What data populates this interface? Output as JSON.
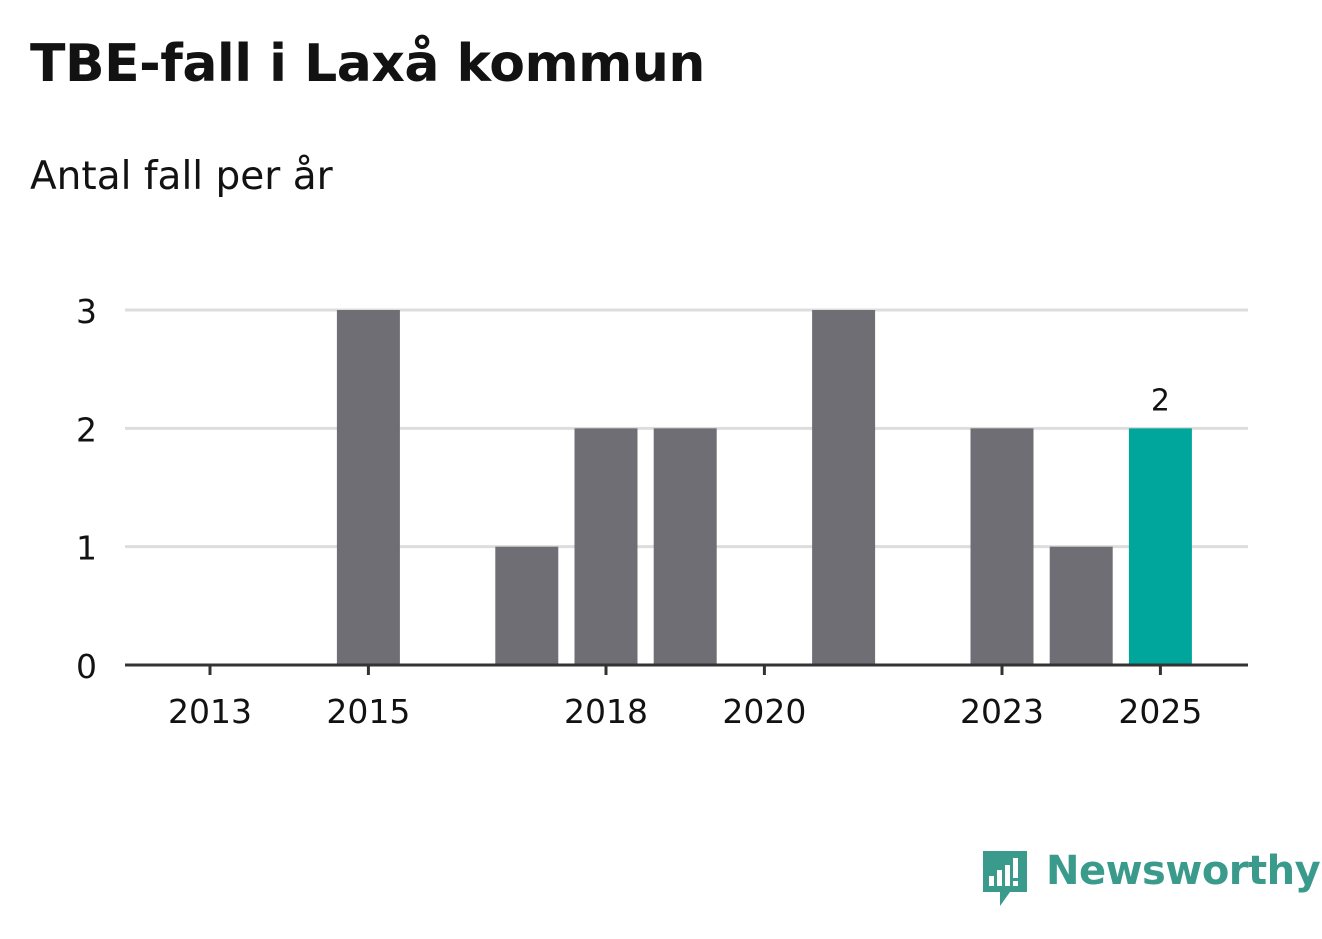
{
  "title": "TBE-fall i Laxå kommun",
  "subtitle": "Antal fall per år",
  "colors": {
    "bar": "#6f6e74",
    "highlight": "#00a69b",
    "grid": "#dddddd",
    "axis": "#333333",
    "text": "#121212",
    "brand": "#3a9a8c"
  },
  "chart_data": {
    "type": "bar",
    "title": "TBE-fall i Laxå kommun",
    "subtitle": "Antal fall per år",
    "xlabel": "",
    "ylabel": "",
    "categories": [
      "2013",
      "2014",
      "2015",
      "2016",
      "2017",
      "2018",
      "2019",
      "2020",
      "2021",
      "2022",
      "2023",
      "2024",
      "2025"
    ],
    "values": [
      0,
      0,
      3,
      0,
      1,
      2,
      2,
      0,
      3,
      0,
      2,
      1,
      2
    ],
    "highlight_index": 12,
    "data_labels": [
      {
        "index": 12,
        "text": "2"
      }
    ],
    "x_tick_labels": [
      "2013",
      "2015",
      "2018",
      "2020",
      "2023",
      "2025"
    ],
    "y_ticks": [
      0,
      1,
      2,
      3
    ],
    "ylim": [
      0,
      3
    ],
    "grid": true,
    "legend": "none"
  },
  "branding": {
    "logo_text": "Newsworthy",
    "logo_icon": "newsworthy-logo-icon"
  }
}
